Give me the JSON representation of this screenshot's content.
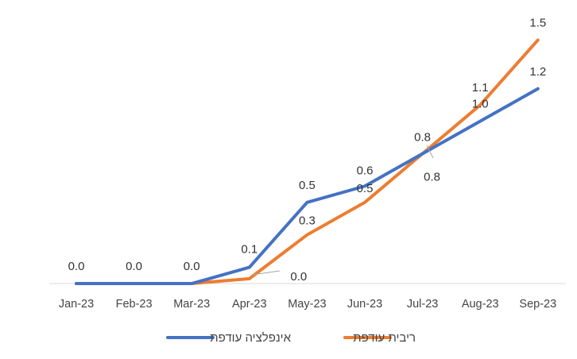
{
  "chart_data": {
    "type": "line",
    "categories": [
      "Jan-23",
      "Feb-23",
      "Mar-23",
      "Apr-23",
      "May-23",
      "Jun-23",
      "Jul-23",
      "Aug-23",
      "Sep-23"
    ],
    "series": [
      {
        "name": "אינפלציה עודפת",
        "color": "#4472C4",
        "values": [
          0.0,
          0.0,
          0.0,
          0.1,
          0.5,
          0.6,
          0.8,
          1.0,
          1.2
        ],
        "labels": [
          "0.0",
          "0.0",
          "0.0",
          "0.1",
          "0.5",
          "0.6",
          "0.8",
          "1.0",
          "1.2"
        ]
      },
      {
        "name": "ריבית עודפת",
        "color": "#ED7D31",
        "values": [
          0.0,
          0.0,
          0.0,
          0.03,
          0.3,
          0.5,
          0.8,
          1.1,
          1.5
        ],
        "labels": [
          "",
          "",
          "",
          "0.0",
          "0.3",
          "0.5",
          "0.8",
          "1.1",
          "1.5"
        ]
      }
    ],
    "ylim": [
      0,
      1.6
    ],
    "grid": false,
    "legend_position": "bottom"
  }
}
